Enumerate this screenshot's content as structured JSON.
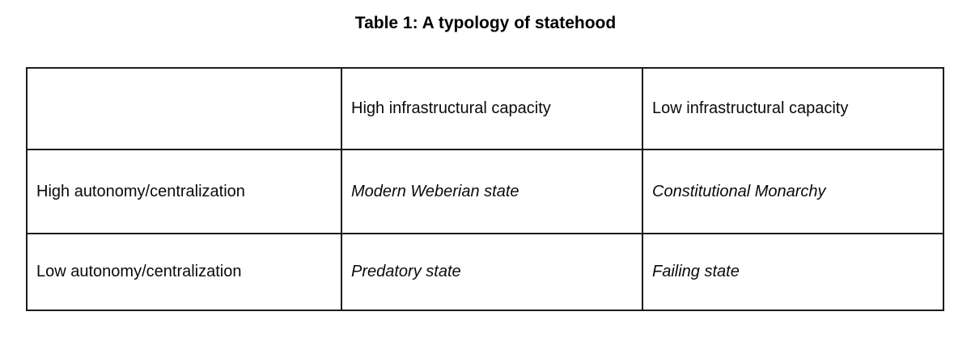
{
  "table": {
    "caption": "Table 1: A typology of statehood",
    "header": {
      "corner": "",
      "high_capacity": "High infrastructural capacity",
      "low_capacity": "Low infrastructural capacity"
    },
    "rows": [
      {
        "label": "High autonomy/centralization",
        "high_capacity": "Modern Weberian state",
        "low_capacity": "Constitutional Monarchy"
      },
      {
        "label": "Low autonomy/centralization",
        "high_capacity": "Predatory state",
        "low_capacity": "Failing state"
      }
    ]
  }
}
